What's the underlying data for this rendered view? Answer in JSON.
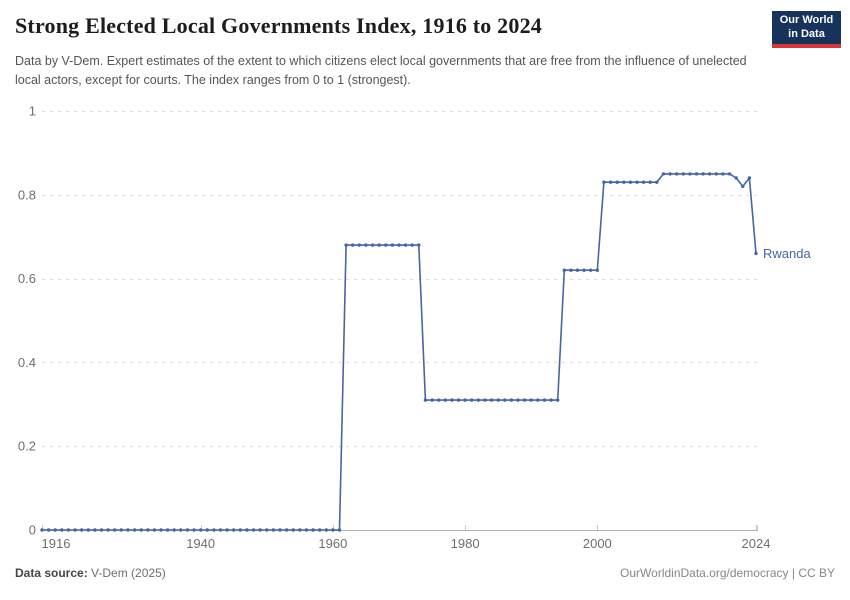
{
  "header": {
    "title": "Strong Elected Local Governments Index, 1916 to 2024",
    "subtitle": "Data by V-Dem. Expert estimates of the extent to which citizens elect local governments that are free from the influence of unelected local actors, except for courts. The index ranges from 0 to 1 (strongest).",
    "logo": {
      "line1": "Our World",
      "line2": "in Data",
      "bg_color": "#16335c",
      "bar_color": "#d8353a",
      "text_color": "#ffffff"
    }
  },
  "chart_data": {
    "type": "line",
    "title": "Strong Elected Local Governments Index, 1916 to 2024",
    "xlabel": "",
    "ylabel": "",
    "xlim": [
      1916,
      2024
    ],
    "ylim": [
      0,
      1
    ],
    "xticks": [
      1916,
      1940,
      1960,
      1980,
      2000,
      2024
    ],
    "yticks": [
      0,
      0.2,
      0.4,
      0.6,
      0.8,
      1
    ],
    "grid": "horizontal-dashed",
    "legend_position": "end-of-line-label",
    "series": [
      {
        "name": "Rwanda",
        "color": "#4566a5",
        "start_year": 1916,
        "values": [
          0,
          0,
          0,
          0,
          0,
          0,
          0,
          0,
          0,
          0,
          0,
          0,
          0,
          0,
          0,
          0,
          0,
          0,
          0,
          0,
          0,
          0,
          0,
          0,
          0,
          0,
          0,
          0,
          0,
          0,
          0,
          0,
          0,
          0,
          0,
          0,
          0,
          0,
          0,
          0,
          0,
          0,
          0,
          0,
          0,
          0,
          0.68,
          0.68,
          0.68,
          0.68,
          0.68,
          0.68,
          0.68,
          0.68,
          0.68,
          0.68,
          0.68,
          0.68,
          0.31,
          0.31,
          0.31,
          0.31,
          0.31,
          0.31,
          0.31,
          0.31,
          0.31,
          0.31,
          0.31,
          0.31,
          0.31,
          0.31,
          0.31,
          0.31,
          0.31,
          0.31,
          0.31,
          0.31,
          0.31,
          0.62,
          0.62,
          0.62,
          0.62,
          0.62,
          0.62,
          0.83,
          0.83,
          0.83,
          0.83,
          0.83,
          0.83,
          0.83,
          0.83,
          0.83,
          0.85,
          0.85,
          0.85,
          0.85,
          0.85,
          0.85,
          0.85,
          0.85,
          0.85,
          0.85,
          0.85,
          0.84,
          0.82,
          0.84,
          0.66
        ]
      }
    ]
  },
  "footer": {
    "source_label": "Data source:",
    "source_value": "V-Dem (2025)",
    "credit": "OurWorldinData.org/democracy | CC BY"
  }
}
